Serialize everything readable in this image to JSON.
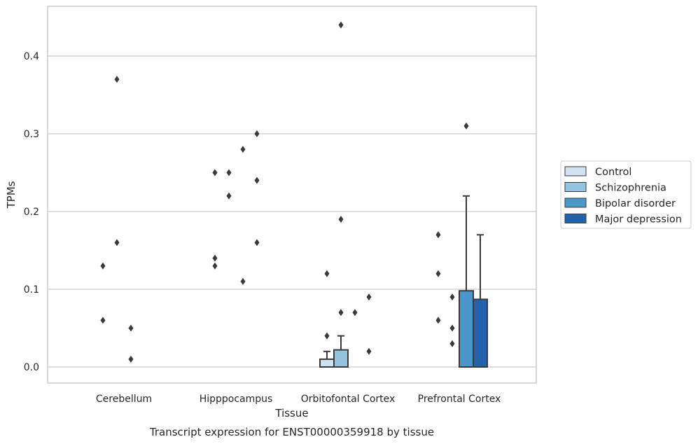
{
  "chart_data": {
    "type": "bar",
    "title": "Transcript expression for ENST00000359918 by tissue",
    "xlabel": "Tissue",
    "ylabel": "TPMs",
    "ylim": [
      -0.021,
      0.465
    ],
    "yticks": [
      "0.0",
      "0.1",
      "0.2",
      "0.3",
      "0.4"
    ],
    "grid": true,
    "legend_position": "right",
    "categories": [
      "Cerebellum",
      "Hipppocampus",
      "Orbitofontal Cortex",
      "Prefrontal Cortex"
    ],
    "series": [
      {
        "name": "Control",
        "color": "#d0e1f2",
        "values": [
          0,
          0,
          0.01,
          0
        ],
        "error_upper": [
          null,
          null,
          0.02,
          null
        ],
        "outliers": [
          [
            0.13,
            0.06
          ],
          [
            0.25,
            0.14,
            0.13
          ],
          [
            0.12,
            0.04
          ],
          [
            0.17,
            0.12,
            0.06
          ]
        ]
      },
      {
        "name": "Schizophrenia",
        "color": "#94c4df",
        "values": [
          0,
          0,
          0.022,
          0
        ],
        "error_upper": [
          null,
          null,
          0.04,
          null
        ],
        "outliers": [
          [
            0.37,
            0.16
          ],
          [
            0.25,
            0.22
          ],
          [
            0.44,
            0.19,
            0.07
          ],
          [
            0.09,
            0.05,
            0.03
          ]
        ]
      },
      {
        "name": "Bipolar disorder",
        "color": "#4a98c9",
        "values": [
          0,
          0,
          0,
          0.098
        ],
        "error_upper": [
          null,
          null,
          null,
          0.22
        ],
        "outliers": [
          [
            0.05,
            0.01
          ],
          [
            0.28,
            0.11
          ],
          [
            0.07
          ],
          [
            0.31
          ]
        ]
      },
      {
        "name": "Major depression",
        "color": "#2164ab",
        "values": [
          0,
          0,
          0,
          0.087
        ],
        "error_upper": [
          null,
          null,
          null,
          0.17
        ],
        "outliers": [
          [],
          [
            0.3,
            0.24,
            0.16
          ],
          [
            0.09,
            0.02
          ],
          []
        ]
      }
    ]
  }
}
